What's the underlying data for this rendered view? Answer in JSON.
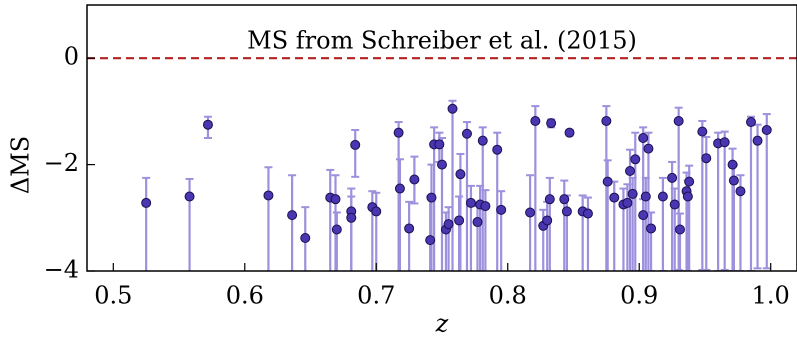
{
  "chart_data": {
    "type": "scatter",
    "xlabel": "z",
    "ylabel": "ΔMS",
    "xlim": [
      0.48,
      1.02
    ],
    "ylim": [
      -4,
      1
    ],
    "xticks": [
      0.5,
      0.6,
      0.7,
      0.8,
      0.9,
      {
        "value": 1,
        "label": "1.0"
      }
    ],
    "yticks": [
      {
        "value": -4,
        "label": "−4"
      },
      {
        "value": -2,
        "label": "−2"
      },
      0
    ],
    "reference_line": {
      "y": 0,
      "color": "#b22222",
      "label": "MS from Schreiber et al. (2015)"
    },
    "point_color": "#4a36b0",
    "error_color": "#9d90dc",
    "x": [
      0.525,
      0.558,
      0.572,
      0.618,
      0.636,
      0.646,
      0.665,
      0.669,
      0.67,
      0.681,
      0.681,
      0.684,
      0.697,
      0.7,
      0.717,
      0.718,
      0.725,
      0.729,
      0.741,
      0.742,
      0.744,
      0.748,
      0.75,
      0.753,
      0.755,
      0.758,
      0.763,
      0.764,
      0.769,
      0.772,
      0.777,
      0.779,
      0.781,
      0.783,
      0.792,
      0.795,
      0.817,
      0.821,
      0.827,
      0.83,
      0.832,
      0.833,
      0.843,
      0.845,
      0.847,
      0.857,
      0.861,
      0.875,
      0.876,
      0.881,
      0.888,
      0.891,
      0.893,
      0.895,
      0.897,
      0.903,
      0.903,
      0.905,
      0.907,
      0.909,
      0.918,
      0.925,
      0.927,
      0.93,
      0.931,
      0.936,
      0.937,
      0.938,
      0.948,
      0.951,
      0.96,
      0.965,
      0.971,
      0.972,
      0.977,
      0.985,
      0.99,
      0.997
    ],
    "y": [
      -2.72,
      -2.6,
      -1.25,
      -2.58,
      -2.95,
      -3.38,
      -2.62,
      -2.65,
      -3.22,
      -2.88,
      -3.0,
      -1.63,
      -2.8,
      -2.88,
      -1.4,
      -2.45,
      -3.2,
      -2.28,
      -3.42,
      -2.62,
      -1.62,
      -1.62,
      -2.0,
      -3.22,
      -3.12,
      -0.95,
      -3.05,
      -2.18,
      -1.42,
      -2.72,
      -3.08,
      -2.75,
      -1.55,
      -2.78,
      -1.72,
      -2.85,
      -2.9,
      -1.18,
      -3.15,
      -3.05,
      -2.65,
      -1.22,
      -2.65,
      -2.88,
      -1.4,
      -2.88,
      -2.92,
      -1.18,
      -2.32,
      -2.62,
      -2.75,
      -2.72,
      -2.12,
      -2.55,
      -1.9,
      -1.5,
      -2.95,
      -2.6,
      -1.7,
      -3.2,
      -2.6,
      -2.25,
      -2.75,
      -1.18,
      -3.22,
      -2.5,
      -2.6,
      -2.32,
      -1.38,
      -1.88,
      -1.6,
      -1.58,
      -2.0,
      -2.3,
      -2.5,
      -1.2,
      -1.55,
      -1.35
    ],
    "yerr": [
      [
        1.5,
        0.47
      ],
      [
        1.5,
        0.33
      ],
      [
        0.25,
        0.15
      ],
      [
        1.5,
        0.53
      ],
      [
        1.2,
        0.75
      ],
      [
        0.8,
        0.58
      ],
      [
        1.5,
        0.52
      ],
      [
        1.5,
        0.45
      ],
      [
        0.9,
        0.32
      ],
      [
        1.2,
        0.43
      ],
      [
        1.1,
        0.4
      ],
      [
        0.6,
        0.28
      ],
      [
        1.3,
        0.3
      ],
      [
        1.2,
        0.35
      ],
      [
        2.7,
        0.2
      ],
      [
        1.6,
        0.55
      ],
      [
        0.9,
        0.5
      ],
      [
        0.45,
        0.43
      ],
      [
        0.7,
        0.82
      ],
      [
        1.5,
        0.62
      ],
      [
        2.5,
        0.32
      ],
      [
        0.33,
        0.22
      ],
      [
        2.1,
        0.5
      ],
      [
        0.9,
        0.32
      ],
      [
        0.9,
        0.32
      ],
      [
        3.1,
        0.15
      ],
      [
        1.0,
        0.45
      ],
      [
        1.9,
        0.38
      ],
      [
        2.6,
        0.22
      ],
      [
        1.3,
        0.32
      ],
      [
        1.0,
        0.3
      ],
      [
        1.3,
        0.35
      ],
      [
        2.5,
        0.25
      ],
      [
        1.3,
        0.3
      ],
      [
        2.3,
        0.32
      ],
      [
        1.2,
        0.35
      ],
      [
        1.2,
        0.7
      ],
      [
        2.9,
        0.28
      ],
      [
        0.9,
        0.3
      ],
      [
        1.0,
        0.35
      ],
      [
        1.4,
        0.4
      ],
      [
        0.08,
        0.07
      ],
      [
        1.4,
        0.35
      ],
      [
        1.2,
        0.3
      ],
      [
        0.05,
        0.05
      ],
      [
        1.2,
        0.3
      ],
      [
        1.1,
        0.3
      ],
      [
        2.9,
        0.28
      ],
      [
        1.7,
        0.4
      ],
      [
        1.4,
        0.3
      ],
      [
        1.3,
        0.3
      ],
      [
        1.3,
        0.35
      ],
      [
        1.9,
        0.4
      ],
      [
        1.5,
        0.3
      ],
      [
        2.1,
        0.5
      ],
      [
        2.5,
        0.2
      ],
      [
        1.1,
        0.3
      ],
      [
        1.4,
        0.35
      ],
      [
        2.3,
        0.3
      ],
      [
        0.8,
        0.3
      ],
      [
        1.4,
        0.35
      ],
      [
        1.8,
        0.3
      ],
      [
        1.3,
        0.3
      ],
      [
        2.8,
        0.25
      ],
      [
        0.8,
        0.3
      ],
      [
        1.5,
        0.35
      ],
      [
        1.4,
        0.3
      ],
      [
        1.7,
        0.3
      ],
      [
        2.6,
        0.2
      ],
      [
        2.1,
        0.4
      ],
      [
        2.4,
        0.2
      ],
      [
        2.4,
        0.2
      ],
      [
        2.0,
        0.3
      ],
      [
        1.7,
        0.3
      ],
      [
        1.5,
        0.3
      ],
      [
        2.8,
        0.1
      ],
      [
        2.4,
        0.3
      ],
      [
        2.6,
        0.3
      ]
    ]
  }
}
